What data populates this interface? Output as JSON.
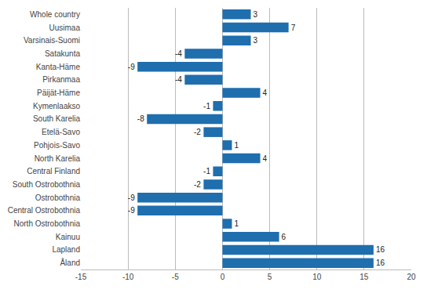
{
  "chart_data": {
    "type": "bar",
    "orientation": "horizontal",
    "categories": [
      "Whole country",
      "Uusimaa",
      "Varsinais-Suomi",
      "Satakunta",
      "Kanta-Häme",
      "Pirkanmaa",
      "Päijät-Häme",
      "Kymenlaakso",
      "South Karelia",
      "Etelä-Savo",
      "Pohjois-Savo",
      "North Karelia",
      "Central Finland",
      "South Ostrobothnia",
      "Ostrobothnia",
      "Central Ostrobothnia",
      "North Ostrobothnia",
      "Kainuu",
      "Lapland",
      "Åland"
    ],
    "values": [
      3,
      7,
      3,
      -4,
      -9,
      -4,
      4,
      -1,
      -8,
      -2,
      1,
      4,
      -1,
      -2,
      -9,
      -9,
      1,
      6,
      16,
      16
    ],
    "color": "#1F6EAE",
    "xlim": [
      -15,
      20
    ],
    "xticks": [
      -15,
      -10,
      -5,
      0,
      5,
      10,
      15,
      20
    ],
    "grid": true,
    "data_labels": true
  }
}
